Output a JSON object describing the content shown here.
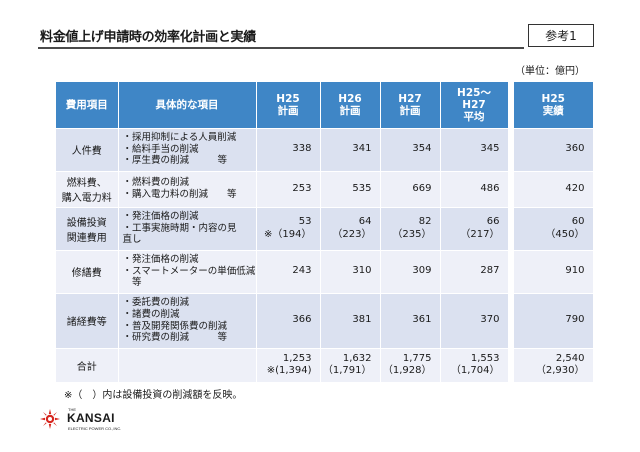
{
  "header": {
    "title": "料金値上げ申請時の効率化計画と実績",
    "ref_label": "参考1",
    "unit": "（単位：億円）"
  },
  "table": {
    "col_category": "費用項目",
    "col_detail": "具体的な項目",
    "col_h25": [
      "H25",
      "計画"
    ],
    "col_h26": [
      "H26",
      "計画"
    ],
    "col_h27": [
      "H27",
      "計画"
    ],
    "col_avg": [
      "H25～",
      "H27",
      "平均"
    ],
    "col_actual": [
      "H25",
      "実績"
    ],
    "rows": [
      {
        "category": [
          "人件費"
        ],
        "details": [
          "・採用抑制による人員削減",
          "・給料手当の削減",
          "・厚生費の削減　　　等"
        ],
        "h25": [
          "338"
        ],
        "h26": [
          "341"
        ],
        "h27": [
          "354"
        ],
        "avg": [
          "345"
        ],
        "actual": [
          "360"
        ]
      },
      {
        "category": [
          "燃料費、",
          "購入電力料"
        ],
        "details": [
          "・燃料費の削減",
          "・購入電力料の削減　　等"
        ],
        "h25": [
          "253"
        ],
        "h26": [
          "535"
        ],
        "h27": [
          "669"
        ],
        "avg": [
          "486"
        ],
        "actual": [
          "420"
        ]
      },
      {
        "category": [
          "設備投資",
          "関連費用"
        ],
        "details": [
          "・発注価格の削減",
          "・工事実施時期・内容の見",
          "直し"
        ],
        "h25": [
          "53",
          "※（194）"
        ],
        "h26": [
          "64",
          "（223）"
        ],
        "h27": [
          "82",
          "（235）"
        ],
        "avg": [
          "66",
          "（217）"
        ],
        "actual": [
          "60",
          "（450）"
        ]
      },
      {
        "category": [
          "修繕費"
        ],
        "details": [
          "・発注価格の削減",
          "・スマートメーターの単価低減",
          "　等"
        ],
        "h25": [
          "243"
        ],
        "h26": [
          "310"
        ],
        "h27": [
          "309"
        ],
        "avg": [
          "287"
        ],
        "actual": [
          "910"
        ]
      },
      {
        "category": [
          "諸経費等"
        ],
        "details": [
          "・委託費の削減",
          "・諸費の削減",
          "・普及開発関係費の削減",
          "・研究費の削減　　　等"
        ],
        "h25": [
          "366"
        ],
        "h26": [
          "381"
        ],
        "h27": [
          "361"
        ],
        "avg": [
          "370"
        ],
        "actual": [
          "790"
        ]
      },
      {
        "category": [
          "合計"
        ],
        "details": [],
        "h25": [
          "1,253",
          "※(1,394)"
        ],
        "h26": [
          "1,632",
          "（1,791）"
        ],
        "h27": [
          "1,775",
          "（1,928）"
        ],
        "avg": [
          "1,553",
          "（1,704）"
        ],
        "actual": [
          "2,540",
          "（2,930）"
        ]
      }
    ]
  },
  "note": "※（　）内は設備投資の削減額を反映。",
  "logo": {
    "small": "THE",
    "word": "KANSAI",
    "sub": "ELECTRIC POWER CO.,INC."
  },
  "colors": {
    "header_blue": "#3f86c6",
    "row_light": "#dbe1f0",
    "row_lighter": "#eef0f8",
    "logo_red": "#d7261e"
  }
}
